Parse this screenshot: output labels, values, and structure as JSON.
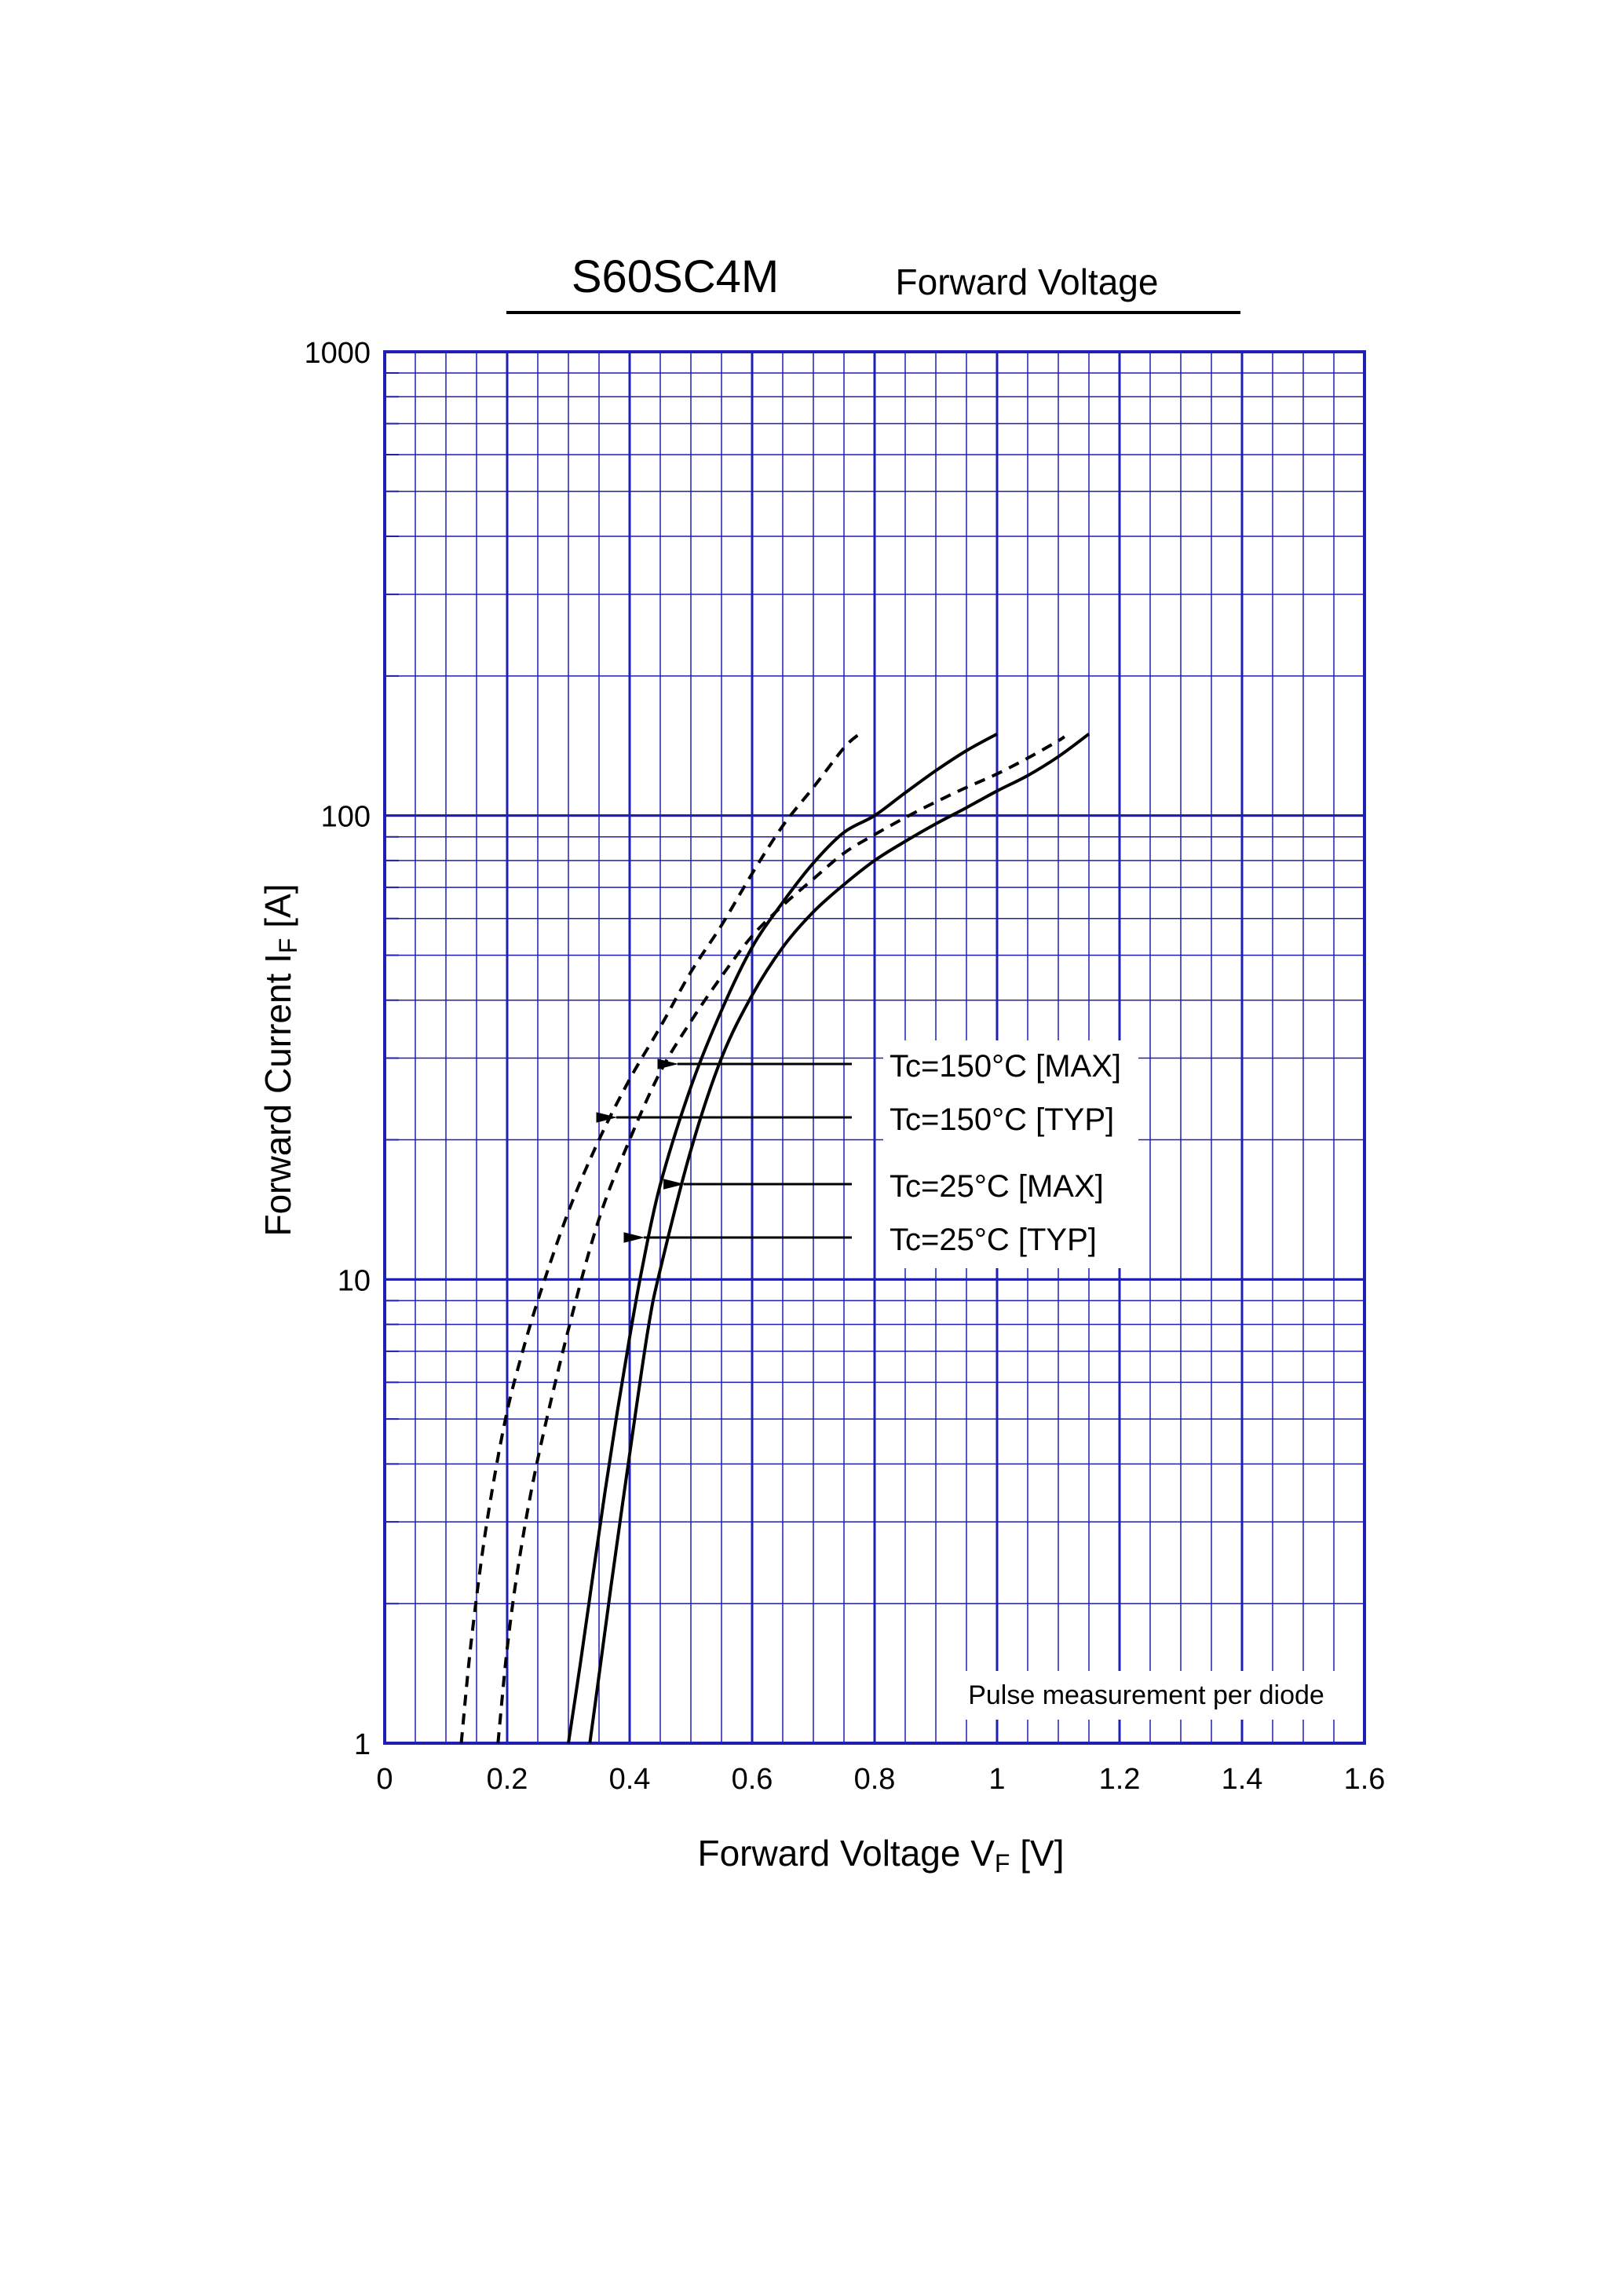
{
  "header": {
    "part_number": "S60SC4M",
    "subtitle": "Forward  Voltage"
  },
  "note": "Pulse  measurement  per  diode",
  "chart_data": {
    "type": "line",
    "title": "S60SC4M",
    "subtitle": "Forward  Voltage",
    "xlabel": {
      "main": "Forward Voltage  V",
      "sub": "F",
      "unit": "[V]"
    },
    "ylabel": {
      "main": "Forward Current  I",
      "sub": "F",
      "unit": "[A]"
    },
    "xlim": [
      0,
      1.6
    ],
    "ylim": [
      1,
      1000
    ],
    "yscale": "log",
    "grid": true,
    "x_ticks": [
      0,
      0.2,
      0.4,
      0.6,
      0.8,
      1,
      1.2,
      1.4,
      1.6
    ],
    "x_tick_labels": [
      "0",
      "0.2",
      "0.4",
      "0.6",
      "0.8",
      "1",
      "1.2",
      "1.4",
      "1.6"
    ],
    "y_ticks": [
      1,
      10,
      100,
      1000
    ],
    "y_tick_labels": [
      "1",
      "10",
      "100",
      "1000"
    ],
    "colors": {
      "grid": "#1f1fb4",
      "curve": "#000000",
      "text": "#000000"
    },
    "series": [
      {
        "name": "Tc=150°C [TYP]",
        "style": "dashed",
        "x": [
          0.125,
          0.14,
          0.16,
          0.18,
          0.2,
          0.22,
          0.25,
          0.3,
          0.35,
          0.4,
          0.45,
          0.5,
          0.55,
          0.6,
          0.65,
          0.7,
          0.75,
          0.775
        ],
        "y": [
          1,
          1.6,
          2.6,
          3.8,
          5.2,
          6.6,
          9,
          14,
          20,
          27,
          35,
          46,
          58,
          75,
          95,
          115,
          140,
          150
        ]
      },
      {
        "name": "Tc=150°C [MAX]",
        "style": "dashed",
        "x": [
          0.185,
          0.2,
          0.22,
          0.25,
          0.3,
          0.35,
          0.4,
          0.45,
          0.5,
          0.55,
          0.6,
          0.65,
          0.7,
          0.75,
          0.8,
          0.85,
          0.9,
          0.95,
          1.0,
          1.05,
          1.1,
          1.11
        ],
        "y": [
          1,
          1.6,
          2.5,
          4.1,
          7.8,
          13.5,
          20,
          28,
          36,
          45,
          55,
          64,
          73,
          83,
          91,
          99,
          107,
          115,
          123,
          133,
          145,
          148
        ]
      },
      {
        "name": "Tc=25°C [TYP]",
        "style": "solid",
        "x": [
          0.3,
          0.32,
          0.34,
          0.36,
          0.38,
          0.4,
          0.42,
          0.45,
          0.5,
          0.55,
          0.6,
          0.65,
          0.7,
          0.75,
          0.8,
          0.85,
          0.9,
          0.95,
          1.0
        ],
        "y": [
          1,
          1.5,
          2.3,
          3.5,
          5.2,
          7.5,
          10.5,
          16,
          26,
          38,
          52,
          65,
          79,
          92,
          100,
          112,
          125,
          138,
          150
        ]
      },
      {
        "name": "Tc=25°C [MAX]",
        "style": "solid",
        "x": [
          0.335,
          0.35,
          0.37,
          0.4,
          0.43,
          0.45,
          0.5,
          0.55,
          0.6,
          0.65,
          0.7,
          0.75,
          0.8,
          0.85,
          0.9,
          0.95,
          1.0,
          1.05,
          1.1,
          1.15
        ],
        "y": [
          1,
          1.4,
          2.2,
          4.2,
          7.8,
          10.5,
          19,
          30,
          41,
          52,
          62,
          71,
          80,
          88,
          96,
          104,
          113,
          122,
          134,
          150
        ]
      }
    ],
    "annotations": [
      {
        "text": "Tc=150°C [MAX]",
        "series": "Tc=150°C [MAX]",
        "arrow_to": {
          "x": 0.455,
          "y": 26
        }
      },
      {
        "text": "Tc=150°C [TYP]",
        "series": "Tc=150°C [TYP]",
        "arrow_to": {
          "x": 0.355,
          "y": 20
        }
      },
      {
        "text": "Tc=25°C [MAX]",
        "series": "Tc=25°C [MAX]",
        "arrow_to": {
          "x": 0.465,
          "y": 14.5
        }
      },
      {
        "text": "Tc=25°C [TYP]",
        "series": "Tc=25°C [TYP]",
        "arrow_to": {
          "x": 0.4,
          "y": 11
        }
      }
    ]
  }
}
